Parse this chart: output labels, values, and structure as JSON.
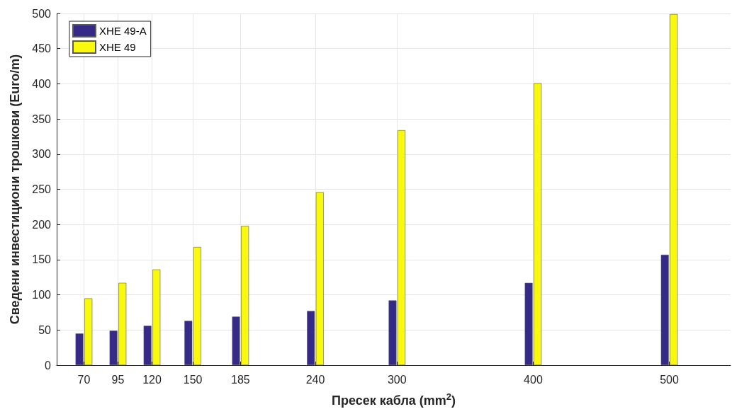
{
  "chart_data": {
    "type": "bar",
    "xlabel": "Пресек кабла (mm$^{2}$)",
    "ylabel": "Сведени инвестициони трошкови (Euro/m)",
    "x": [
      70,
      95,
      120,
      150,
      185,
      240,
      300,
      400,
      500
    ],
    "series": [
      {
        "name": "XHE 49-A",
        "color": "#352a87",
        "values": [
          45,
          49,
          56,
          63,
          69,
          77,
          92,
          117,
          157
        ]
      },
      {
        "name": "XHE 49",
        "color": "#f9f90e",
        "values": [
          95,
          117,
          136,
          168,
          198,
          246,
          334,
          401,
          499
        ]
      }
    ],
    "xlim": [
      50,
      545
    ],
    "xticks": [
      70,
      95,
      120,
      150,
      185,
      240,
      300,
      400,
      500
    ],
    "ylim": [
      0,
      500
    ],
    "yticks": [
      0,
      50,
      100,
      150,
      200,
      250,
      300,
      350,
      400,
      450,
      500
    ],
    "grid": true,
    "legend": "top left"
  }
}
